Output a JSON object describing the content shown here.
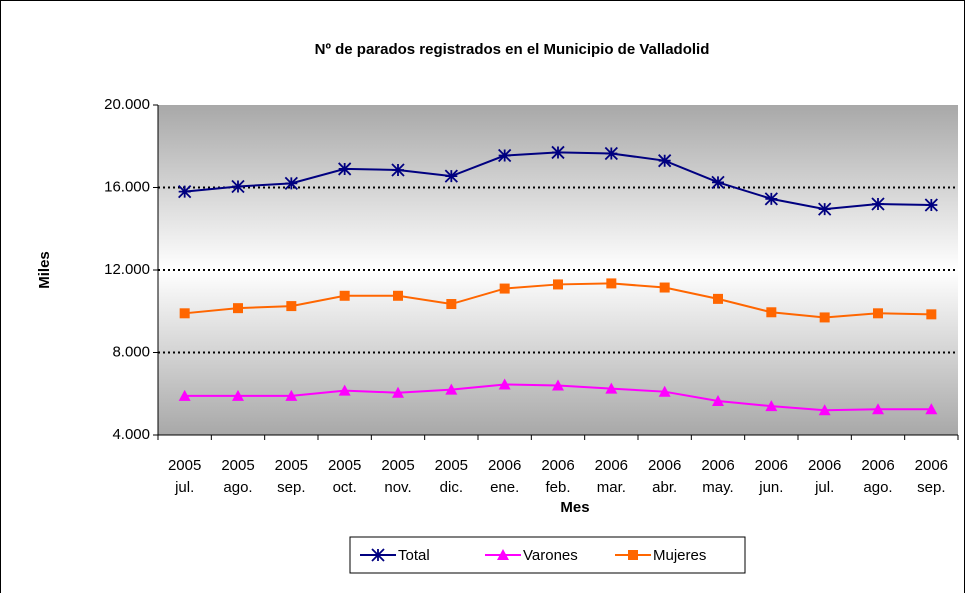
{
  "chart_data": {
    "type": "line",
    "title": "Nº de parados registrados en el Municipio de Valladolid",
    "y_label": "Miles",
    "x_label": "Mes",
    "categories": [
      [
        "2005",
        "jul."
      ],
      [
        "2005",
        "ago."
      ],
      [
        "2005",
        "sep."
      ],
      [
        "2005",
        "oct."
      ],
      [
        "2005",
        "nov."
      ],
      [
        "2005",
        "dic."
      ],
      [
        "2006",
        "ene."
      ],
      [
        "2006",
        "feb."
      ],
      [
        "2006",
        "mar."
      ],
      [
        "2006",
        "abr."
      ],
      [
        "2006",
        "may."
      ],
      [
        "2006",
        "jun."
      ],
      [
        "2006",
        "jul."
      ],
      [
        "2006",
        "ago."
      ],
      [
        "2006",
        "sep."
      ]
    ],
    "series": [
      {
        "name": "Total",
        "color": "#000080",
        "marker": "star",
        "values": [
          15800,
          16050,
          16200,
          16900,
          16850,
          16550,
          17550,
          17700,
          17650,
          17300,
          16250,
          15450,
          14950,
          15200,
          15150
        ]
      },
      {
        "name": "Varones",
        "color": "#ff00ff",
        "marker": "triangle",
        "values": [
          5900,
          5900,
          5900,
          6150,
          6050,
          6200,
          6450,
          6400,
          6250,
          6100,
          5650,
          5400,
          5200,
          5250,
          5250
        ]
      },
      {
        "name": "Mujeres",
        "color": "#ff6600",
        "marker": "square",
        "values": [
          9900,
          10150,
          10250,
          10750,
          10750,
          10350,
          11100,
          11300,
          11350,
          11150,
          10600,
          9950,
          9700,
          9900,
          9850
        ]
      }
    ],
    "ylim": [
      4000,
      20000
    ],
    "yticks": [
      {
        "value": 4000,
        "label": "4.000"
      },
      {
        "value": 8000,
        "label": "8.000"
      },
      {
        "value": 12000,
        "label": "12.000"
      },
      {
        "value": 16000,
        "label": "16.000"
      },
      {
        "value": 20000,
        "label": "20.000"
      }
    ],
    "grid": true,
    "legend": "bottom"
  }
}
